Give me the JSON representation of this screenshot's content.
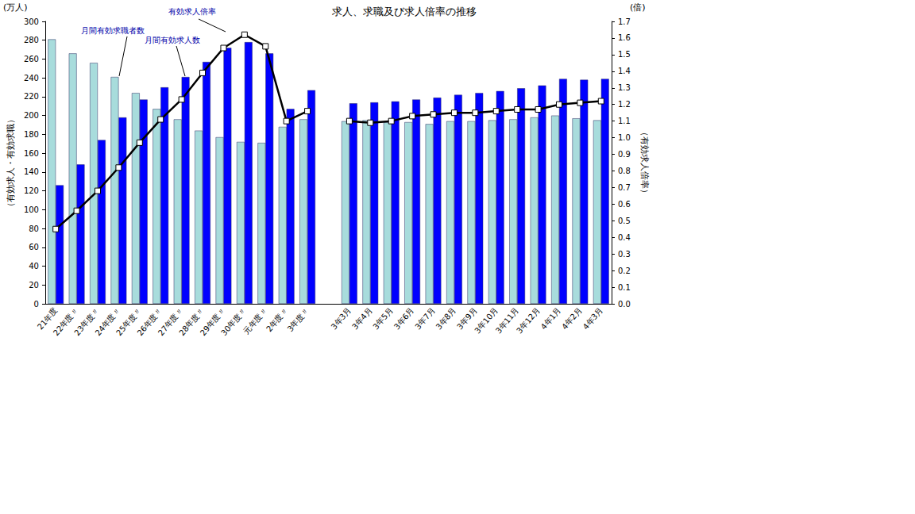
{
  "chart_data": {
    "type": "bar",
    "title": "求人、求職及び求人倍率の推移",
    "y_unit": "(万人)",
    "y2_unit": "(倍)",
    "ylabel": "（有効求人・有効求職）",
    "y2label": "（有効求人倍率）",
    "annotations": [
      "有効求人倍率",
      "月間有効求職者数",
      "月間有効求人数"
    ],
    "categories": [
      "21年度",
      "22年度〃",
      "23年度〃",
      "24年度〃",
      "25年度〃",
      "26年度〃",
      "27年度〃",
      "28年度〃",
      "29年度〃",
      "30年度〃",
      "元年度〃",
      "2年度〃",
      "3年度〃",
      null,
      "3年3月",
      "3年4月",
      "3年5月",
      "3年6月",
      "3年7月",
      "3年8月",
      "3年9月",
      "3年10月",
      "3年11月",
      "3年12月",
      "4年1月",
      "4年2月",
      "4年3月"
    ],
    "series": [
      {
        "name": "月間有効求職者数",
        "type": "bar",
        "color": "#a8dcdc",
        "values": [
          281,
          266,
          256,
          241,
          224,
          207,
          196,
          184,
          177,
          172,
          171,
          188,
          196,
          null,
          194,
          195,
          193,
          193,
          191,
          194,
          194,
          195,
          196,
          198,
          200,
          197,
          195
        ]
      },
      {
        "name": "月間有効求人数",
        "type": "bar",
        "color": "#0000ff",
        "values": [
          126,
          148,
          174,
          198,
          217,
          230,
          241,
          257,
          272,
          278,
          266,
          207,
          227,
          null,
          213,
          214,
          215,
          217,
          219,
          222,
          224,
          226,
          229,
          232,
          239,
          238,
          239
        ]
      },
      {
        "name": "有効求人倍率",
        "type": "line",
        "axis": "y2",
        "color": "#000000",
        "marker": "square",
        "line_style": "solid",
        "values": [
          0.45,
          0.56,
          0.68,
          0.82,
          0.97,
          1.11,
          1.23,
          1.39,
          1.54,
          1.62,
          1.55,
          1.1,
          1.16,
          null,
          1.1,
          1.09,
          1.1,
          1.13,
          1.14,
          1.15,
          1.15,
          1.16,
          1.17,
          1.17,
          1.2,
          1.21,
          1.22
        ]
      }
    ],
    "ylim": [
      0,
      300
    ],
    "yticks": [
      0,
      20,
      40,
      60,
      80,
      100,
      120,
      140,
      160,
      180,
      200,
      220,
      240,
      260,
      280,
      300
    ],
    "y2lim": [
      0,
      1.7
    ],
    "y2ticks": [
      {
        "value": 0,
        "label": "0.0"
      },
      0.1,
      0.2,
      0.3,
      0.4,
      0.5,
      0.6,
      0.7,
      0.8,
      0.9,
      {
        "value": 1,
        "label": "1.0"
      },
      1.1,
      1.2,
      1.3,
      1.4,
      1.5,
      1.6,
      1.7
    ],
    "grid": false
  }
}
